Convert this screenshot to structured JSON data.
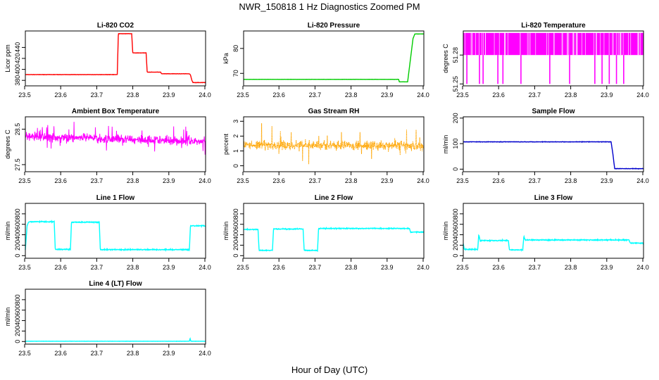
{
  "page": {
    "title": "NWR_150818  1 Hz Diagnostics Zoomed PM",
    "xlabel": "Hour of Day (UTC)"
  },
  "chart_data": [
    {
      "type": "line",
      "title": "Li-820 CO2",
      "ylabel": "Licor ppm",
      "color": "#ff0000",
      "xlim": [
        23.5,
        24.0
      ],
      "ylim": [
        370,
        470
      ],
      "xticks": [
        "23.5",
        "23.6",
        "23.7",
        "23.8",
        "23.9",
        "24.0"
      ],
      "yticks": [
        380,
        400,
        420,
        440
      ],
      "noise": 0.4,
      "series": [
        {
          "x": [
            23.5,
            23.755,
            23.758,
            23.795,
            23.798,
            23.835,
            23.838,
            23.875,
            23.878,
            23.955,
            23.958,
            23.962,
            23.965,
            24.0
          ],
          "y": [
            390.5,
            390.5,
            465,
            465,
            430,
            430,
            395,
            395,
            392,
            392,
            390,
            380,
            376,
            376
          ]
        }
      ]
    },
    {
      "type": "line",
      "title": "Li-820 Pressure",
      "ylabel": "kPa",
      "color": "#00cc00",
      "xlim": [
        23.5,
        24.0
      ],
      "ylim": [
        65,
        87
      ],
      "xticks": [
        "23.5",
        "23.6",
        "23.7",
        "23.8",
        "23.9",
        "24.0"
      ],
      "yticks": [
        70,
        80
      ],
      "noise": 0.05,
      "series": [
        {
          "x": [
            23.5,
            23.93,
            23.932,
            23.955,
            23.97,
            23.975,
            24.0
          ],
          "y": [
            67.6,
            67.6,
            66.6,
            66.6,
            84,
            85.8,
            85.8
          ]
        }
      ]
    },
    {
      "type": "spikes",
      "title": "Li-820 Temperature",
      "ylabel": "degrees C",
      "color": "#ff00ff",
      "xlim": [
        23.5,
        24.0
      ],
      "ylim": [
        51.248,
        51.305
      ],
      "xticks": [
        "23.5",
        "23.6",
        "23.7",
        "23.8",
        "23.9",
        "24.0"
      ],
      "yticks": [
        51.25,
        51.28
      ],
      "band": [
        51.28,
        51.303
      ],
      "dips": [
        23.51,
        23.545,
        23.555,
        23.596,
        23.61,
        23.66,
        23.74,
        23.795,
        23.865,
        23.885,
        23.905,
        23.925,
        23.945
      ],
      "dip_low": 51.25
    },
    {
      "type": "noise",
      "title": "Ambient Box Temperature",
      "ylabel": "degrees C",
      "color": "#ff00ff",
      "xlim": [
        23.5,
        24.0
      ],
      "ylim": [
        27.3,
        28.85
      ],
      "xticks": [
        "23.5",
        "23.6",
        "23.7",
        "23.8",
        "23.9",
        "24.0"
      ],
      "yticks": [
        27.5,
        28.5
      ],
      "center": [
        28.3,
        28.15
      ],
      "spread": 0.35
    },
    {
      "type": "noise",
      "title": "Gas Stream RH",
      "ylabel": "percent",
      "color": "#ffa500",
      "xlim": [
        23.5,
        24.0
      ],
      "ylim": [
        -0.4,
        3.3
      ],
      "xticks": [
        "23.5",
        "23.6",
        "23.7",
        "23.8",
        "23.9",
        "24.0"
      ],
      "yticks": [
        0,
        1,
        2,
        3
      ],
      "center": [
        1.4,
        1.35
      ],
      "spread": 0.9
    },
    {
      "type": "line",
      "title": "Sample Flow",
      "ylabel": "ml/min",
      "color": "#0000cc",
      "xlim": [
        23.5,
        24.0
      ],
      "ylim": [
        -10,
        205
      ],
      "xticks": [
        "23.5",
        "23.6",
        "23.7",
        "23.8",
        "23.9",
        "24.0"
      ],
      "yticks": [
        0,
        100,
        200
      ],
      "noise": 1.2,
      "series": [
        {
          "x": [
            23.5,
            23.91,
            23.915,
            23.92,
            24.0
          ],
          "y": [
            107,
            107,
            60,
            2,
            2
          ]
        }
      ]
    },
    {
      "type": "line",
      "title": "Line 1 Flow",
      "ylabel": "ml/min",
      "color": "#00ffff",
      "xlim": [
        23.5,
        24.0
      ],
      "ylim": [
        -50,
        1000
      ],
      "xticks": [
        "23.5",
        "23.6",
        "23.7",
        "23.8",
        "23.9",
        "24.0"
      ],
      "yticks": [
        0,
        200,
        400,
        600,
        800
      ],
      "noise": 14,
      "series": [
        {
          "x": [
            23.5,
            23.505,
            23.51,
            23.58,
            23.583,
            23.625,
            23.628,
            23.705,
            23.708,
            23.955,
            23.958,
            24.0
          ],
          "y": [
            120,
            580,
            650,
            650,
            120,
            120,
            640,
            640,
            115,
            115,
            570,
            570
          ]
        }
      ]
    },
    {
      "type": "line",
      "title": "Line 2 Flow",
      "ylabel": "ml/min",
      "color": "#00ffff",
      "xlim": [
        23.5,
        24.0
      ],
      "ylim": [
        -50,
        1000
      ],
      "xticks": [
        "23.5",
        "23.6",
        "23.7",
        "23.8",
        "23.9",
        "24.0"
      ],
      "yticks": [
        0,
        200,
        400,
        600,
        800
      ],
      "noise": 12,
      "series": [
        {
          "x": [
            23.5,
            23.54,
            23.543,
            23.58,
            23.583,
            23.665,
            23.668,
            23.705,
            23.708,
            23.96,
            23.963,
            24.0
          ],
          "y": [
            500,
            500,
            100,
            100,
            510,
            510,
            100,
            100,
            520,
            520,
            450,
            450
          ]
        }
      ]
    },
    {
      "type": "line",
      "title": "Line 3 Flow",
      "ylabel": "ml/min",
      "color": "#00ffff",
      "xlim": [
        23.5,
        24.0
      ],
      "ylim": [
        -50,
        1000
      ],
      "xticks": [
        "23.5",
        "23.6",
        "23.7",
        "23.8",
        "23.9",
        "24.0"
      ],
      "yticks": [
        0,
        200,
        400,
        600,
        800
      ],
      "noise": 14,
      "series": [
        {
          "x": [
            23.5,
            23.503,
            23.54,
            23.543,
            23.547,
            23.625,
            23.628,
            23.665,
            23.668,
            23.672,
            23.96,
            23.963,
            24.0
          ],
          "y": [
            230,
            120,
            120,
            400,
            290,
            290,
            110,
            110,
            370,
            300,
            300,
            240,
            240
          ]
        }
      ]
    },
    {
      "type": "line",
      "title": "Line 4 (LT) Flow",
      "ylabel": "ml/min",
      "color": "#00ffff",
      "xlim": [
        23.5,
        24.0
      ],
      "ylim": [
        -50,
        1000
      ],
      "xticks": [
        "23.5",
        "23.6",
        "23.7",
        "23.8",
        "23.9",
        "24.0"
      ],
      "yticks": [
        0,
        200,
        400,
        600,
        800
      ],
      "noise": 3,
      "series": [
        {
          "x": [
            23.5,
            23.955,
            23.957,
            23.959,
            23.961,
            24.0
          ],
          "y": [
            5,
            5,
            60,
            5,
            5,
            5
          ]
        }
      ]
    }
  ]
}
